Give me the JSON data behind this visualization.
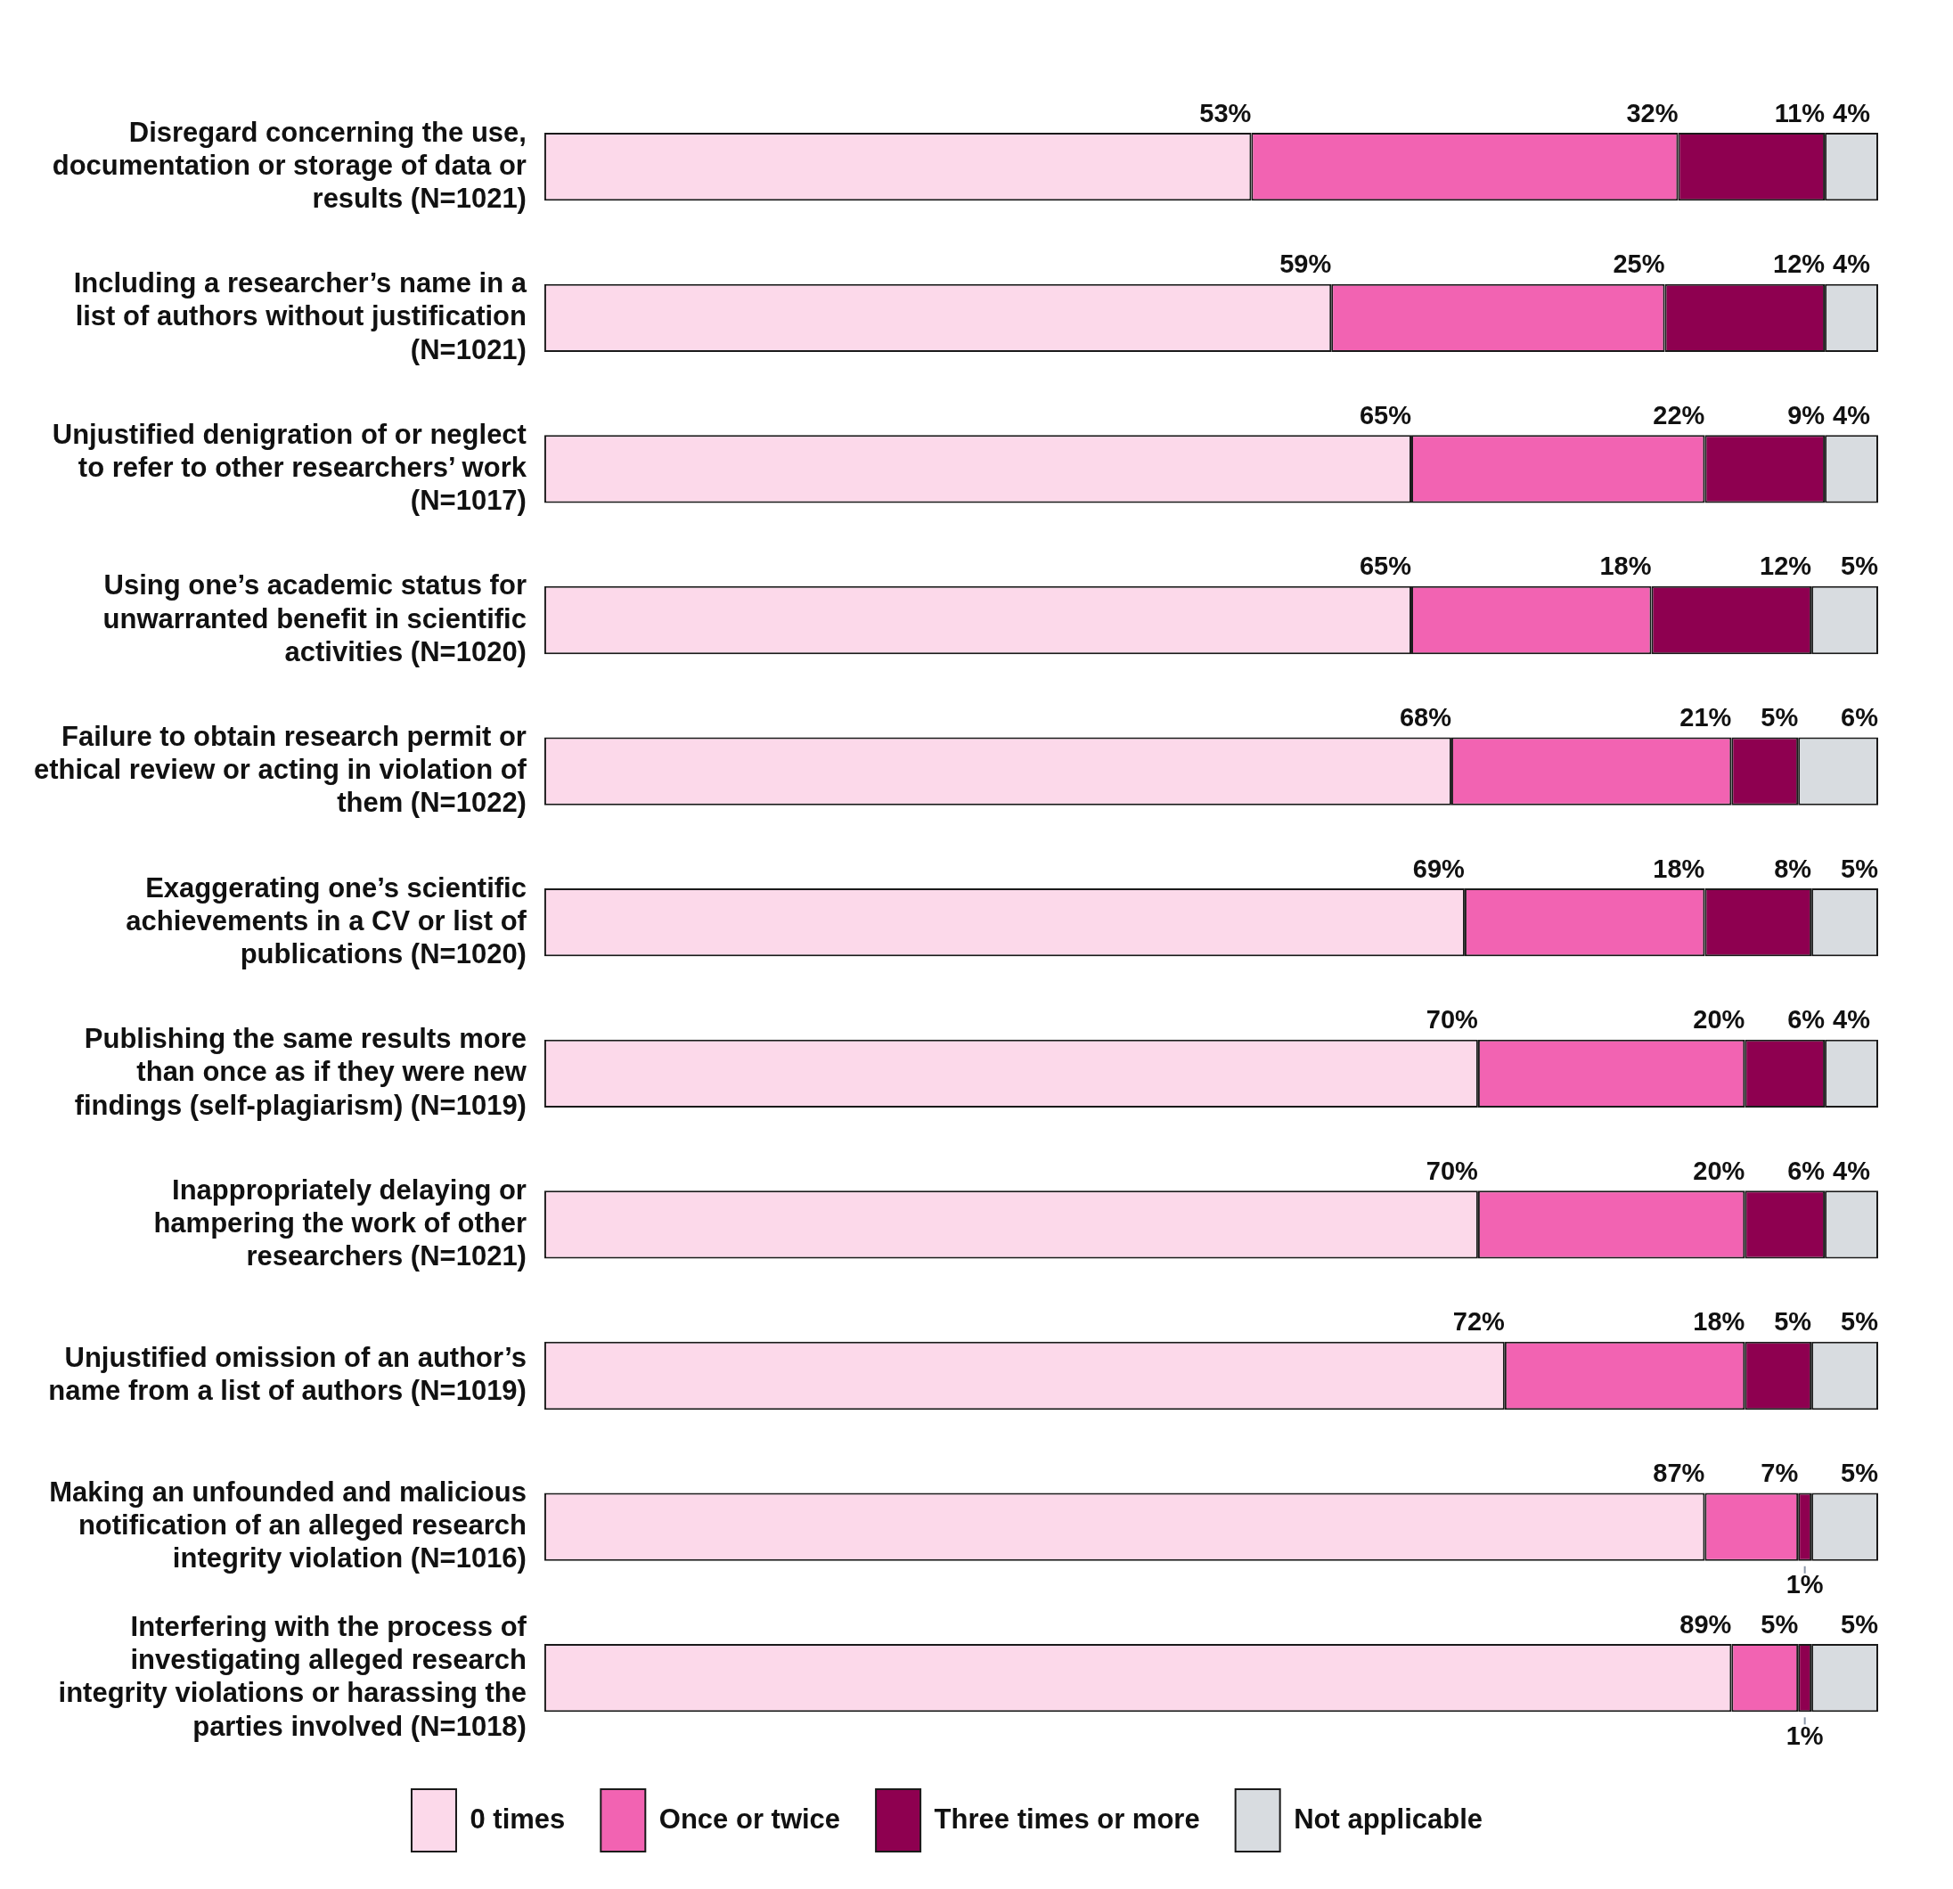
{
  "chart_data": {
    "type": "bar",
    "orientation": "horizontal",
    "stacked": true,
    "legend": "bottom",
    "tick_labels": "y",
    "xlim": [
      0,
      100
    ],
    "categories": [
      "Disregard concerning the use, documentation or storage of data or results (N=1021)",
      "Including a researcher’s name in a list of authors without justification (N=1021)",
      "Unjustified denigration of or neglect to refer to other researchers’ work (N=1017)",
      "Using one’s academic status for unwarranted benefit in scientific activities (N=1020)",
      "Failure to obtain research permit or ethical review or acting in violation of them (N=1022)",
      "Exaggerating one’s scientific achievements in a CV or list of publications (N=1020)",
      "Publishing the same results more than once as if they were new findings (self-plagiarism) (N=1019)",
      "Inappropriately delaying or hampering the work of other researchers (N=1021)",
      "Unjustified omission of an author’s name from a list of authors (N=1019)",
      "Making an unfounded and malicious notification of an alleged research integrity violation (N=1016)",
      "Interfering with the process of investigating alleged research integrity violations or harassing the parties involved (N=1018)"
    ],
    "series": [
      {
        "name": "0 times",
        "color": "#fcd9ea",
        "values": [
          53,
          59,
          65,
          65,
          68,
          69,
          70,
          70,
          72,
          87,
          89
        ],
        "value_labels": [
          "53%",
          "59%",
          "65%",
          "65%",
          "68%",
          "69%",
          "70%",
          "70%",
          "72%",
          "87%",
          "89%"
        ]
      },
      {
        "name": "Once or twice",
        "color": "#f263b2",
        "values": [
          32,
          25,
          22,
          18,
          21,
          18,
          20,
          20,
          18,
          7,
          5
        ],
        "value_labels": [
          "32%",
          "25%",
          "22%",
          "18%",
          "21%",
          "18%",
          "20%",
          "20%",
          "18%",
          "7%",
          "5%"
        ]
      },
      {
        "name": "Three times or more",
        "color": "#8e0050",
        "values": [
          11,
          12,
          9,
          12,
          5,
          8,
          6,
          6,
          5,
          1,
          1
        ],
        "value_labels": [
          "11%",
          "12%",
          "9%",
          "12%",
          "5%",
          "8%",
          "6%",
          "6%",
          "5%",
          "1%",
          "1%"
        ]
      },
      {
        "name": "Not applicable",
        "color": "#d8dce0",
        "values": [
          4,
          4,
          4,
          5,
          6,
          5,
          4,
          4,
          5,
          5,
          5
        ],
        "value_labels": [
          "4%",
          "4%",
          "4%",
          "5%",
          "6%",
          "5%",
          "4%",
          "4%",
          "5%",
          "5%",
          "5%"
        ]
      }
    ]
  }
}
